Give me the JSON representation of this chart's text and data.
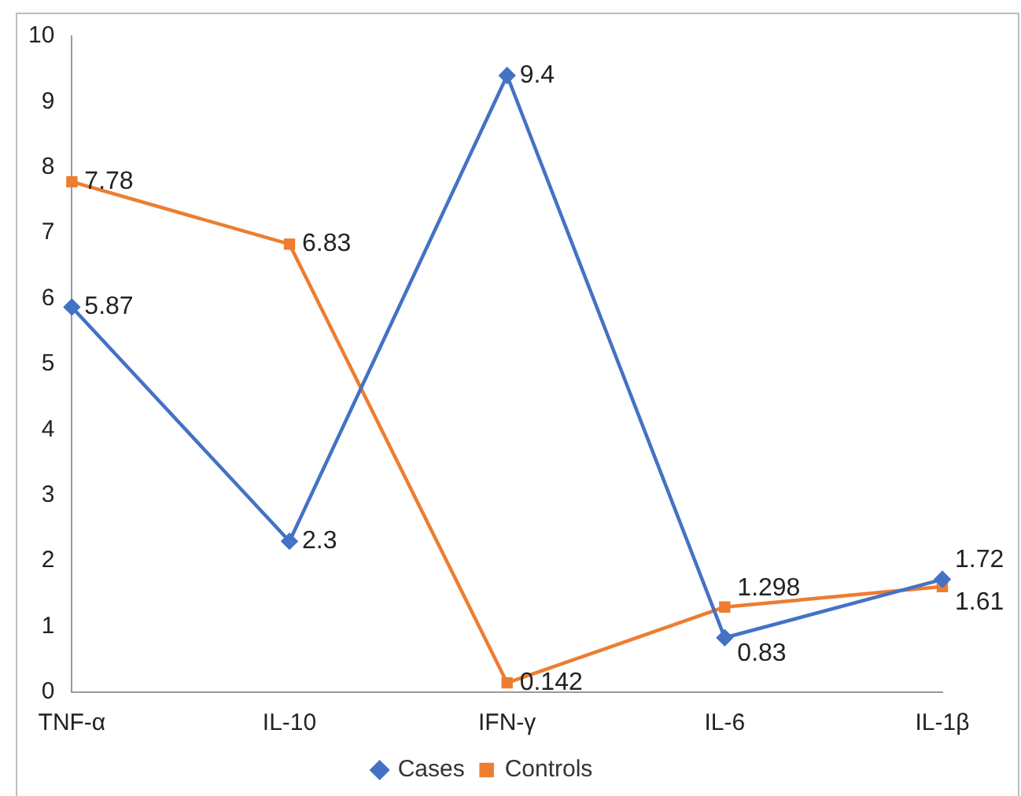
{
  "chart_data": {
    "type": "line",
    "categories": [
      "TNF-α",
      "IL-10",
      "IFN-γ",
      "IL-6",
      "IL-1β"
    ],
    "series": [
      {
        "name": "Cases",
        "color": "#4472c4",
        "marker": "diamond",
        "values": [
          5.87,
          2.3,
          9.4,
          0.83,
          1.72
        ]
      },
      {
        "name": "Controls",
        "color": "#ed7d31",
        "marker": "square",
        "values": [
          7.78,
          6.83,
          0.142,
          1.298,
          1.61
        ]
      }
    ],
    "ylim": [
      0,
      10
    ],
    "yticks": [
      0,
      1,
      2,
      3,
      4,
      5,
      6,
      7,
      8,
      9,
      10
    ],
    "grid": false,
    "legend": "bottom",
    "data_labels": true,
    "line_style": "solid"
  }
}
